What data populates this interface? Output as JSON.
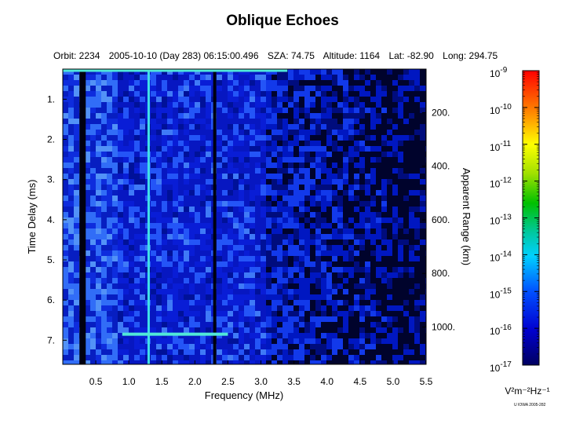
{
  "header": {
    "title": "Oblique Echoes",
    "orbit": "Orbit: 2234",
    "datetime": "2005-10-10 (Day 283) 06:15:00.496",
    "sza": "SZA:  74.75",
    "altitude": "Altitude:    1164",
    "lat": "Lat: -82.90",
    "long": "Long: 294.75"
  },
  "credit": "U IOWA 2005-282",
  "chart_data": {
    "type": "heatmap",
    "title": "Oblique Echoes",
    "xlabel": "Frequency (MHz)",
    "ylabel": "Time Delay (ms)",
    "y2label": "Apparent Range (km)",
    "xlim": [
      0.0,
      5.5
    ],
    "ylim": [
      0.25,
      7.6
    ],
    "x_ticks": [
      "0.5",
      "1.0",
      "1.5",
      "2.0",
      "2.5",
      "3.0",
      "3.5",
      "4.0",
      "4.5",
      "5.0",
      "5.5"
    ],
    "y_ticks": [
      "1.",
      "2.",
      "3.",
      "4.",
      "5.",
      "6.",
      "7."
    ],
    "y2_ticks": [
      "200.",
      "400.",
      "600.",
      "800.",
      "1000."
    ],
    "colorbar": {
      "label": "V²m⁻²Hz⁻¹",
      "scale": "log",
      "range_exponents": [
        -17,
        -9
      ],
      "tick_exponents": [
        "-9",
        "-10",
        "-11",
        "-12",
        "-13",
        "-14",
        "-15",
        "-16",
        "-17"
      ]
    },
    "features": [
      {
        "name": "dark vertical band",
        "x": 0.3
      },
      {
        "name": "bright vertical line",
        "x": 1.3
      },
      {
        "name": "dark vertical line",
        "x": 2.3
      },
      {
        "name": "bright trace",
        "x_range": [
          0.9,
          2.5
        ],
        "y": 6.85
      },
      {
        "name": "bright top band",
        "x_range": [
          0.0,
          3.4
        ],
        "y": 0.28
      }
    ]
  }
}
